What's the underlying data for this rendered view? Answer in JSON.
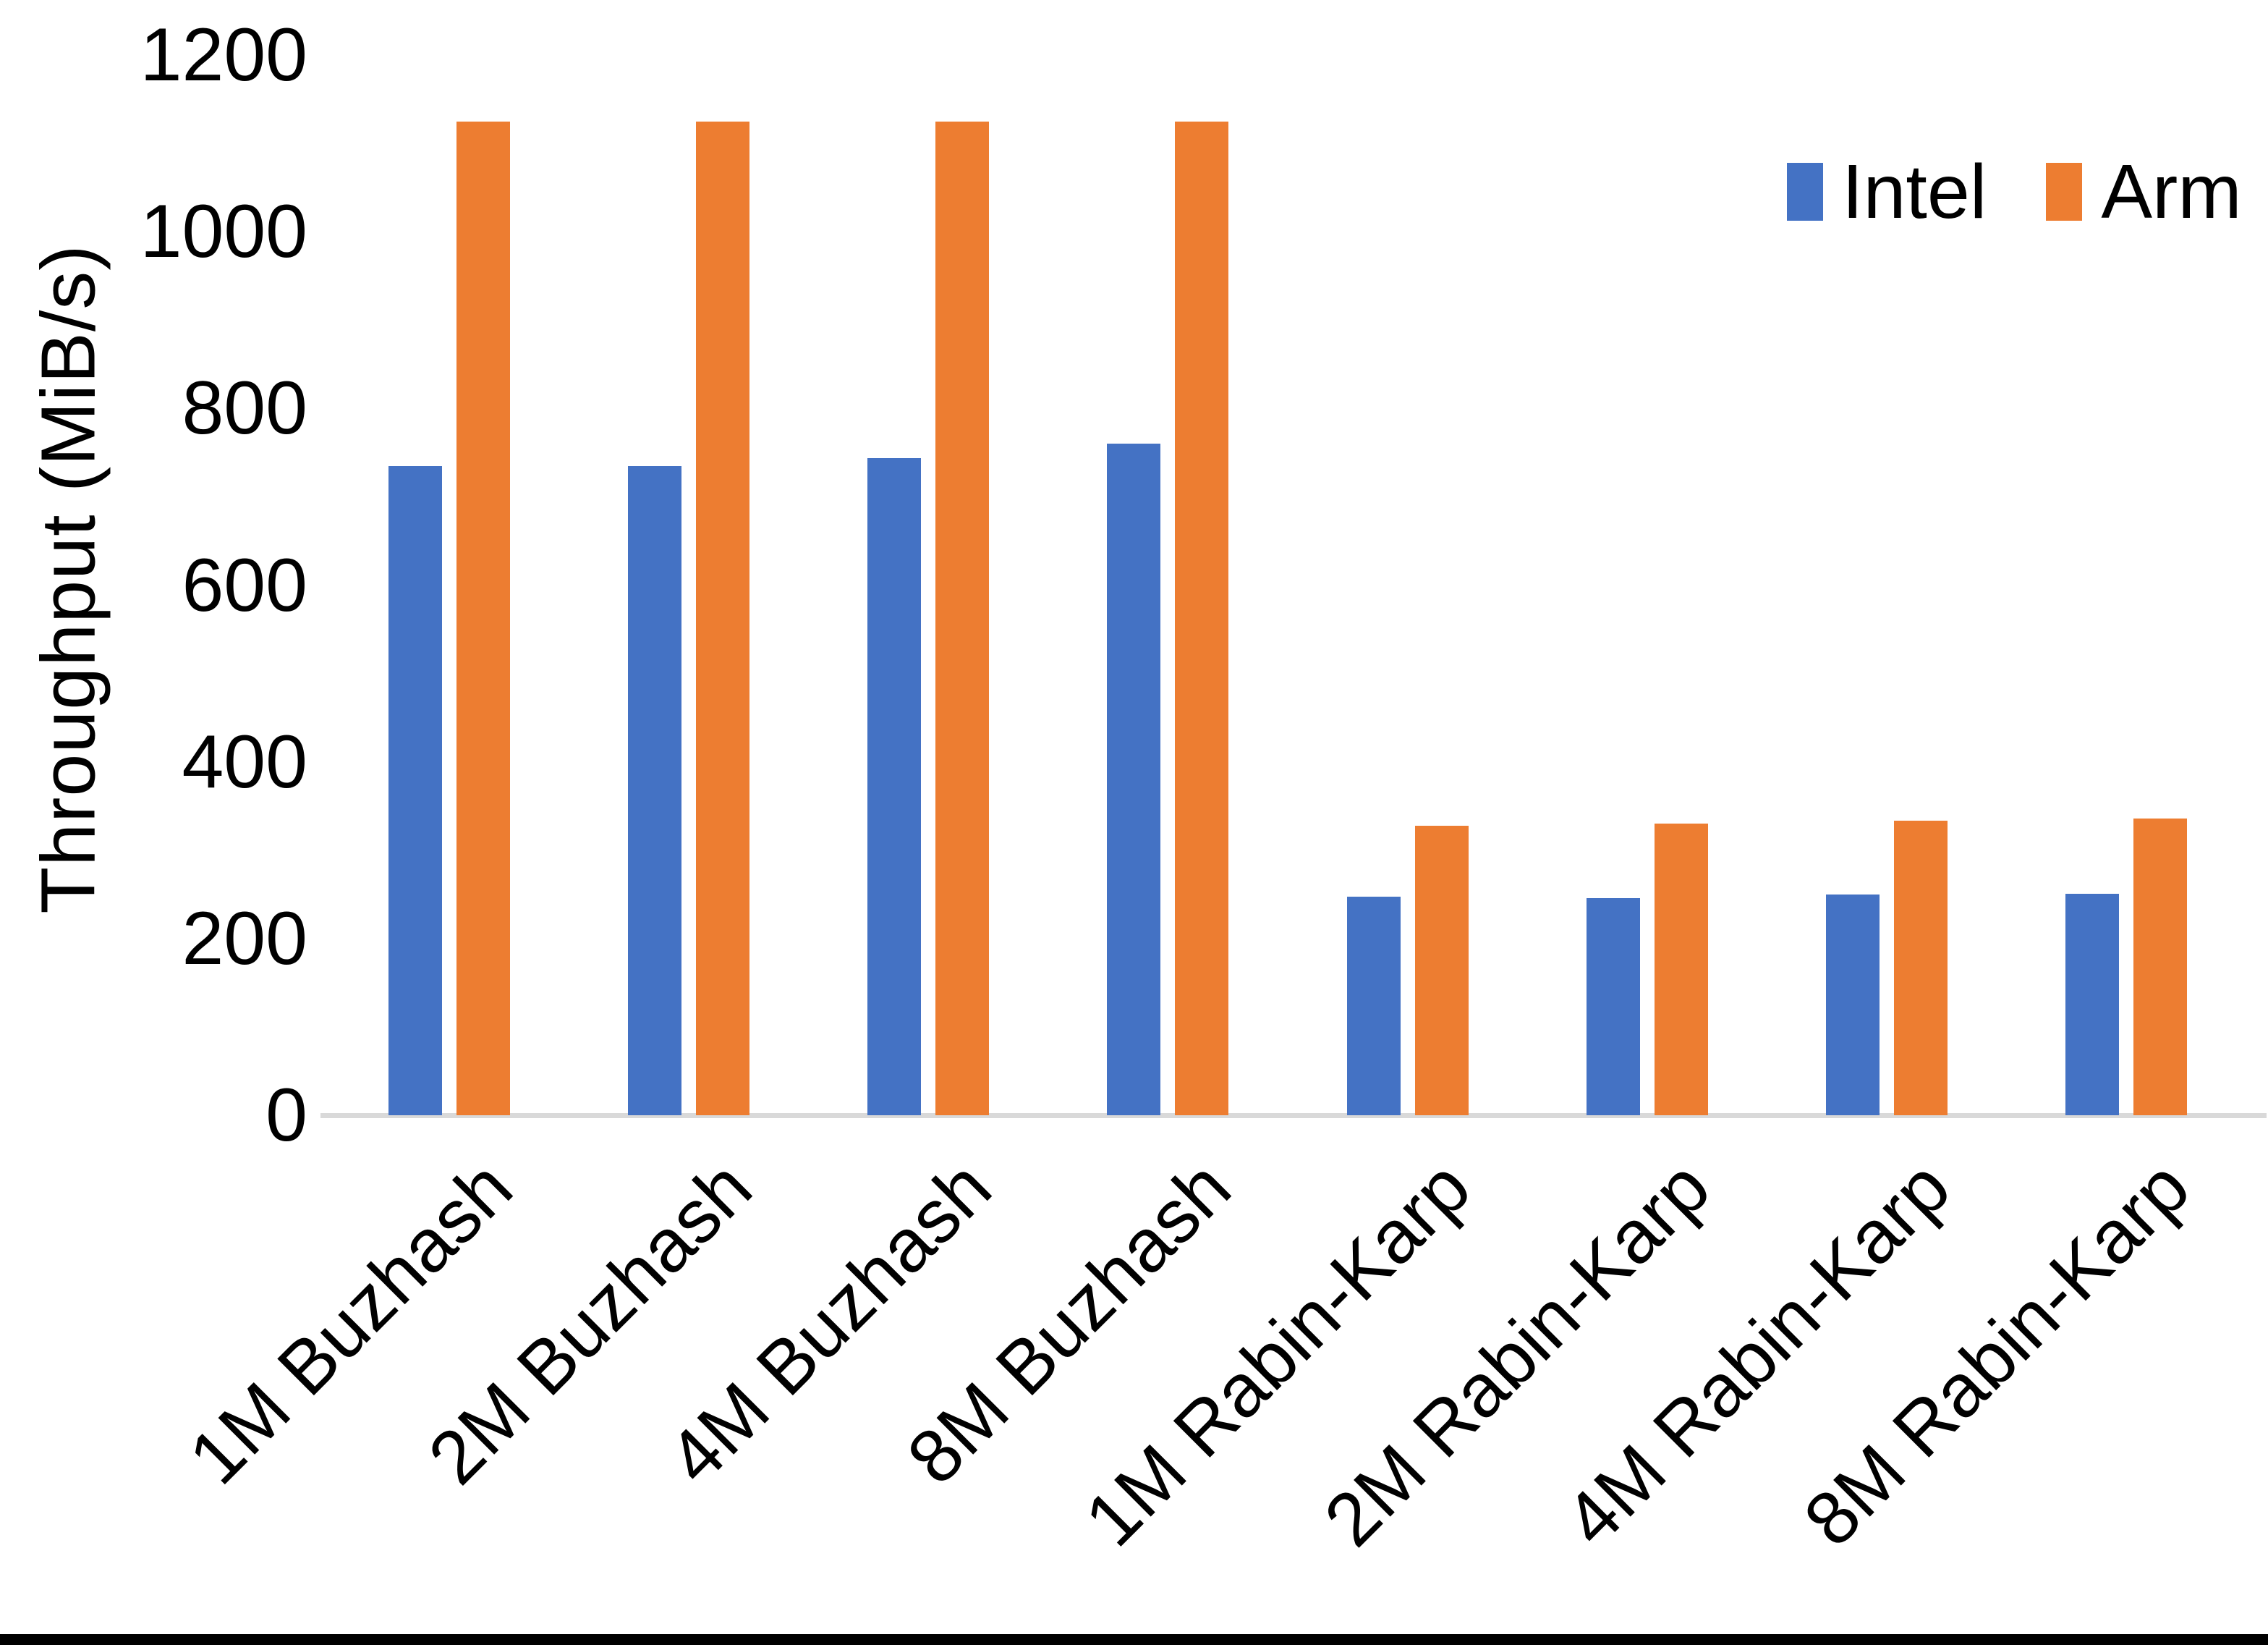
{
  "chart_data": {
    "type": "bar",
    "title": "",
    "xlabel": "",
    "ylabel": "Throughput (MiB/s)",
    "ylim": [
      0,
      1200
    ],
    "ytick_step": 200,
    "grid": false,
    "legend_position": "top-right",
    "axis_line_color": "#d9d9d9",
    "text_color": "#000000",
    "categories": [
      "1M Buzhash",
      "2M Buzhash",
      "4M Buzhash",
      "8M Buzhash",
      "1M Rabin-Karp",
      "2M Rabin-Karp",
      "4M Rabin-Karp",
      "8M Rabin-Karp"
    ],
    "series": [
      {
        "name": "Intel",
        "color": "#4472C4",
        "values": [
          735,
          735,
          744,
          760,
          247,
          246,
          250,
          251
        ]
      },
      {
        "name": "Arm",
        "color": "#ED7D31",
        "values": [
          1125,
          1125,
          1125,
          1125,
          328,
          330,
          333,
          336
        ]
      }
    ]
  }
}
